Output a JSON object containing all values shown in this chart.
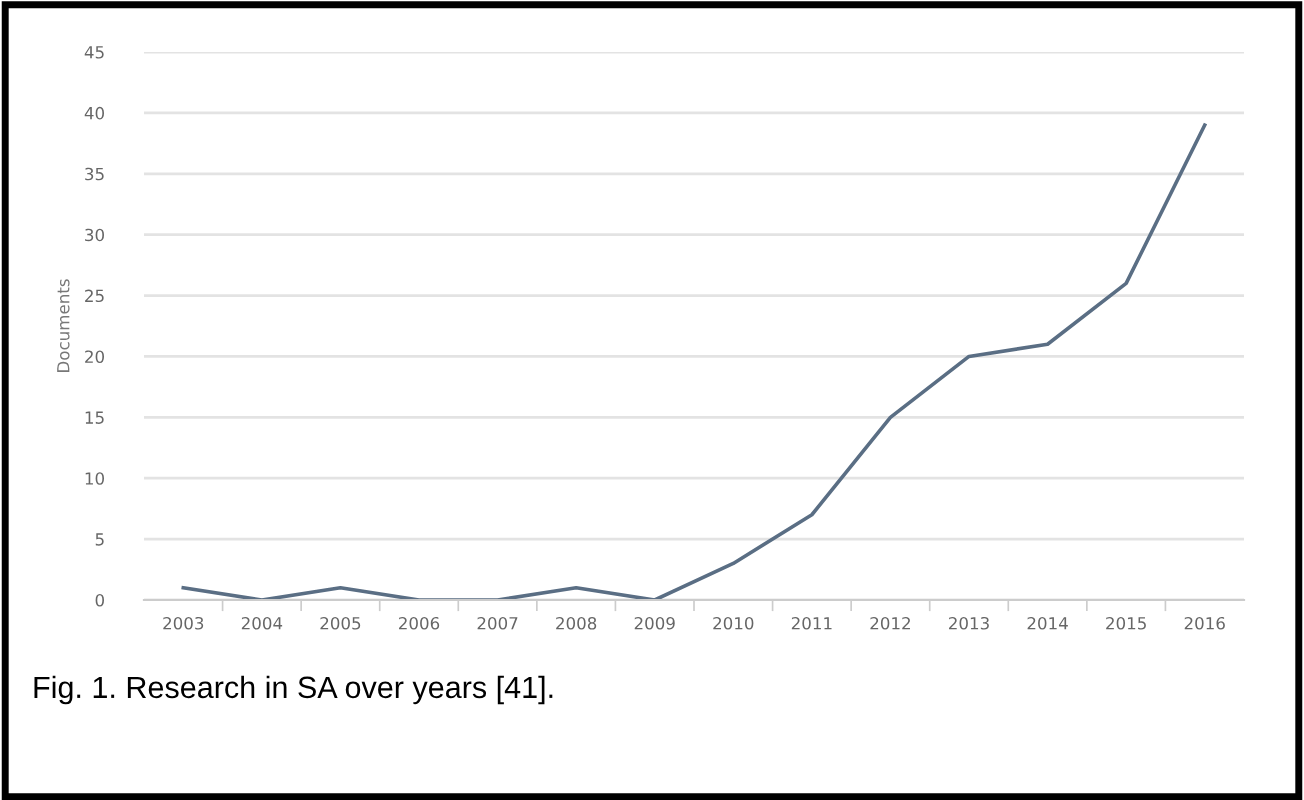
{
  "chart_data": {
    "type": "line",
    "ylabel": "Documents",
    "categories": [
      "2003",
      "2004",
      "2005",
      "2006",
      "2007",
      "2008",
      "2009",
      "2010",
      "2011",
      "2012",
      "2013",
      "2014",
      "2015",
      "2016"
    ],
    "series": [
      {
        "color": "#5a6e84",
        "values": [
          1,
          0,
          1,
          0,
          0,
          1,
          0,
          3,
          7,
          15,
          20,
          21,
          26,
          39
        ]
      }
    ],
    "ylim": [
      0,
      45
    ],
    "yticks": [
      0,
      5,
      10,
      15,
      20,
      25,
      30,
      35,
      40,
      45
    ],
    "grid": "y",
    "legend": false,
    "marker": "none",
    "line_style": "solid",
    "annotations": [
      "Fig. 1. Research in SA over years [41]."
    ]
  }
}
